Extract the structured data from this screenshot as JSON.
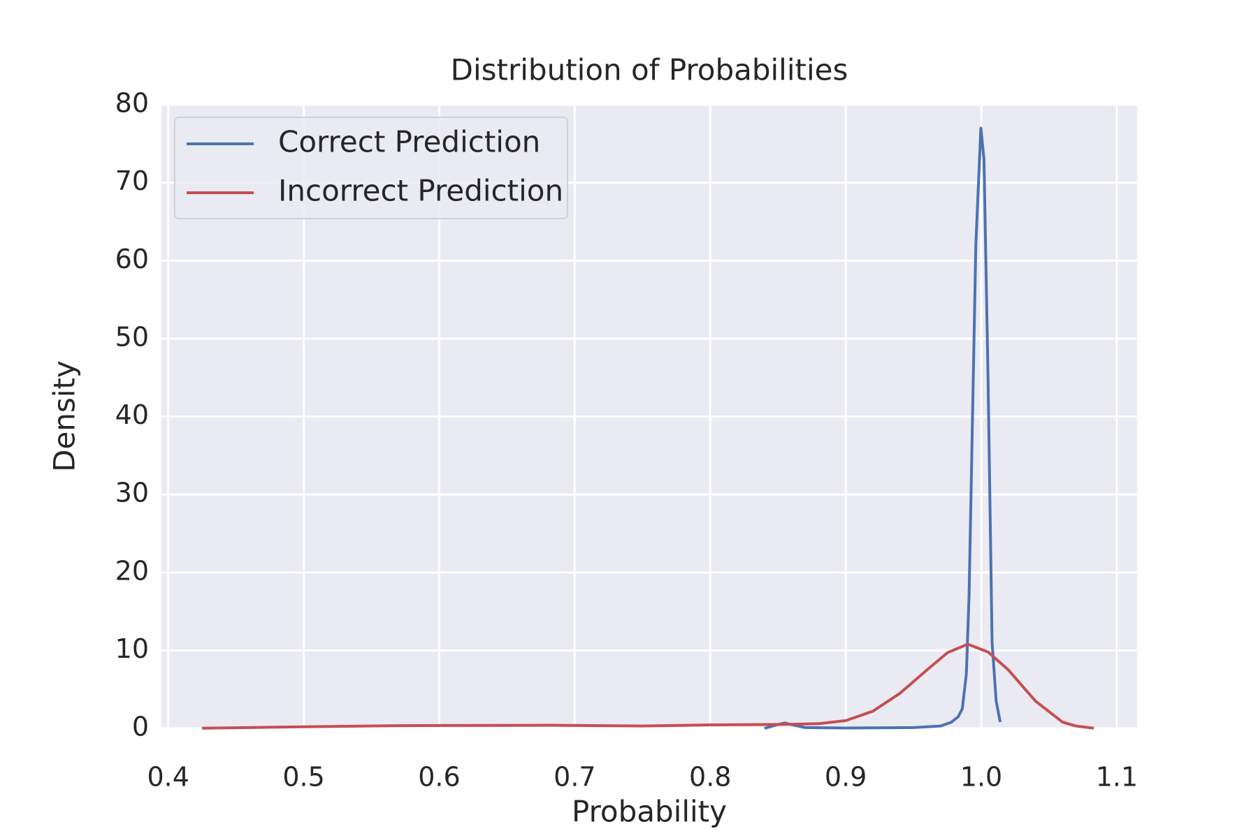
{
  "chart_data": {
    "type": "line",
    "title": "Distribution of Probabilities",
    "x_label": "Probability",
    "y_label": "Density",
    "series": [
      {
        "name": "Correct Prediction",
        "color": "#4c72b0",
        "x": [
          0.84,
          0.848,
          0.855,
          0.862,
          0.87,
          0.9,
          0.95,
          0.97,
          0.978,
          0.983,
          0.986,
          0.989,
          0.991,
          0.993,
          0.996,
          0.9997,
          1.002,
          1.005,
          1.008,
          1.011,
          1.014
        ],
        "values": [
          0,
          0.4,
          0.7,
          0.4,
          0.1,
          0.05,
          0.1,
          0.3,
          0.8,
          1.5,
          2.5,
          7,
          17,
          35,
          62,
          77,
          73,
          45,
          11,
          3.5,
          0.8
        ]
      },
      {
        "name": "Incorrect Prediction",
        "color": "#c44e52",
        "x": [
          0.425,
          0.5,
          0.57,
          0.68,
          0.75,
          0.8,
          0.85,
          0.88,
          0.9,
          0.92,
          0.94,
          0.96,
          0.975,
          0.99,
          1.005,
          1.02,
          1.04,
          1.06,
          1.07,
          1.083
        ],
        "values": [
          0.02,
          0.2,
          0.35,
          0.4,
          0.3,
          0.45,
          0.5,
          0.6,
          1.0,
          2.2,
          4.5,
          7.5,
          9.7,
          10.8,
          9.8,
          7.5,
          3.5,
          0.8,
          0.3,
          0.02
        ]
      }
    ],
    "xlim": [
      0.395,
      1.115
    ],
    "ylim": [
      0,
      80
    ],
    "xticks": [
      0.4,
      0.5,
      0.6,
      0.7,
      0.8,
      0.9,
      {
        "value": 1,
        "label": "1.0"
      },
      1.1
    ],
    "yticks": [
      0,
      10,
      20,
      30,
      40,
      50,
      60,
      70,
      80
    ],
    "grid": true,
    "legend": "upper-left"
  }
}
